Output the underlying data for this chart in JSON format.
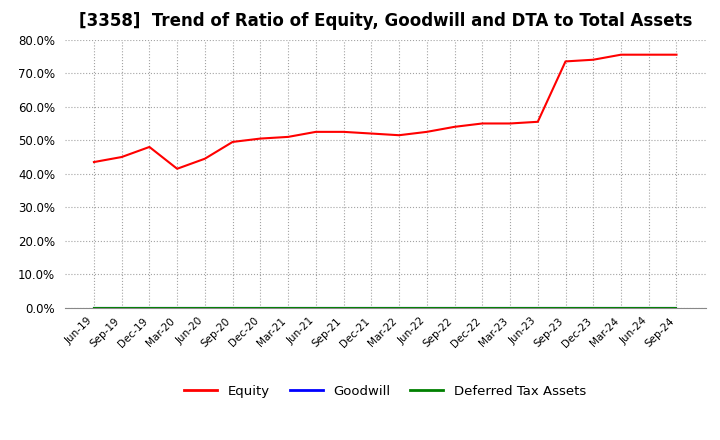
{
  "title": "[3358]  Trend of Ratio of Equity, Goodwill and DTA to Total Assets",
  "labels": [
    "Jun-19",
    "Sep-19",
    "Dec-19",
    "Mar-20",
    "Jun-20",
    "Sep-20",
    "Dec-20",
    "Mar-21",
    "Jun-21",
    "Sep-21",
    "Dec-21",
    "Mar-22",
    "Jun-22",
    "Sep-22",
    "Dec-22",
    "Mar-23",
    "Jun-23",
    "Sep-23",
    "Dec-23",
    "Mar-24",
    "Jun-24",
    "Sep-24"
  ],
  "equity": [
    43.5,
    45.0,
    48.0,
    41.5,
    44.5,
    49.5,
    50.5,
    51.0,
    52.5,
    52.5,
    52.0,
    51.5,
    52.5,
    54.0,
    55.0,
    55.0,
    55.5,
    73.5,
    74.0,
    75.5,
    75.5,
    75.5
  ],
  "goodwill": [
    0,
    0,
    0,
    0,
    0,
    0,
    0,
    0,
    0,
    0,
    0,
    0,
    0,
    0,
    0,
    0,
    0,
    0,
    0,
    0,
    0,
    0
  ],
  "dta": [
    0,
    0,
    0,
    0,
    0,
    0,
    0,
    0,
    0,
    0,
    0,
    0,
    0,
    0,
    0,
    0,
    0,
    0,
    0,
    0,
    0,
    0
  ],
  "equity_color": "#FF0000",
  "goodwill_color": "#0000FF",
  "dta_color": "#008000",
  "ylim": [
    0,
    80
  ],
  "yticks": [
    0,
    10,
    20,
    30,
    40,
    50,
    60,
    70,
    80
  ],
  "background_color": "#FFFFFF",
  "plot_bg_color": "#FFFFFF",
  "grid_color": "#999999",
  "title_fontsize": 12,
  "legend_labels": [
    "Equity",
    "Goodwill",
    "Deferred Tax Assets"
  ]
}
